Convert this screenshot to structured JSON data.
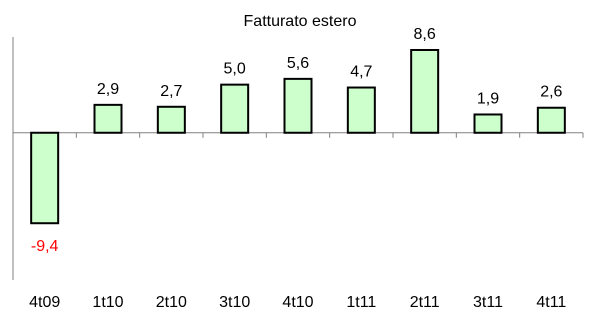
{
  "chart_data": {
    "type": "bar",
    "title": "Fatturato estero",
    "xlabel": "",
    "ylabel": "",
    "categories": [
      "4t09",
      "1t10",
      "2t10",
      "3t10",
      "4t10",
      "1t11",
      "2t11",
      "3t11",
      "4t11"
    ],
    "values": [
      -9.4,
      2.9,
      2.7,
      5.0,
      5.6,
      4.7,
      8.6,
      1.9,
      2.6
    ],
    "labels": [
      "-9,4",
      "2,9",
      "2,7",
      "5,0",
      "5,6",
      "4,7",
      "8,6",
      "1,9",
      "2,6"
    ],
    "ylim": [
      -15.3,
      8.6
    ],
    "grid": false,
    "legend": "none",
    "colors": {
      "bar_fill": "#ccffcc",
      "bar_stroke": "#000000",
      "label_positive": "#000000",
      "label_negative": "#ff0000",
      "axis": "#808080"
    }
  }
}
